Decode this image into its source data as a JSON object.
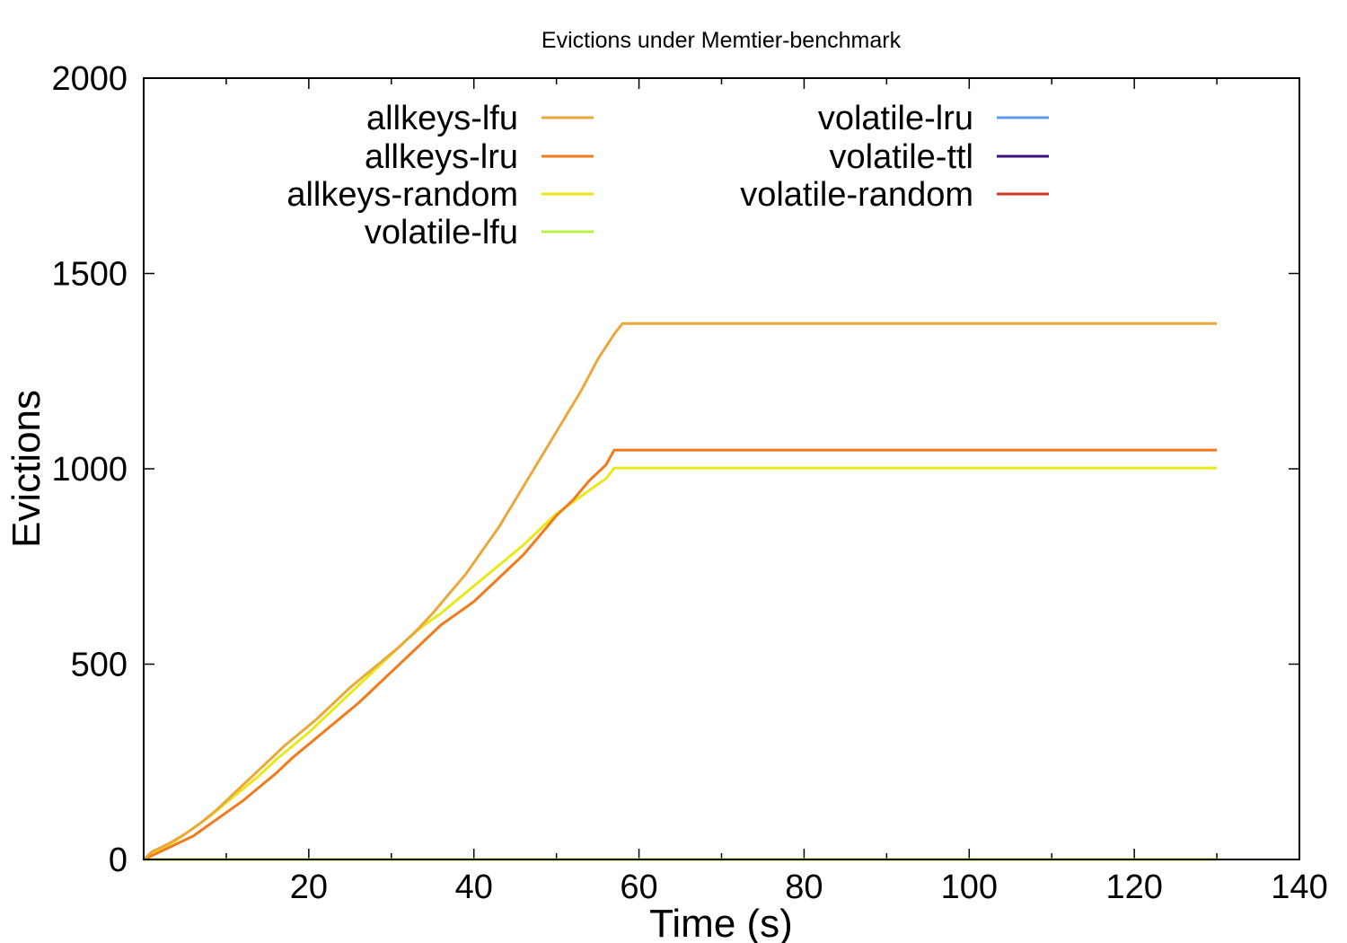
{
  "chart_data": {
    "type": "line",
    "title": "Evictions under Memtier-benchmark",
    "xlabel": "Time (s)",
    "ylabel": "Evictions",
    "xlim": [
      0,
      140
    ],
    "ylim": [
      0,
      2000
    ],
    "xticks": [
      20,
      40,
      60,
      80,
      100,
      120,
      140
    ],
    "xtick_labels": [
      "20",
      "40",
      "60",
      "80",
      "100",
      "120",
      "140"
    ],
    "yticks": [
      0,
      500,
      1000,
      1500,
      2000
    ],
    "ytick_labels": [
      "0",
      "500",
      "1000",
      "1500",
      "2000"
    ],
    "grid": false,
    "legend_position": "top",
    "series": [
      {
        "name": "allkeys-lfu",
        "color": "#eaa83a",
        "points": [
          [
            0,
            0
          ],
          [
            1,
            20
          ],
          [
            3,
            40
          ],
          [
            5,
            65
          ],
          [
            7,
            95
          ],
          [
            9,
            130
          ],
          [
            11,
            170
          ],
          [
            13,
            210
          ],
          [
            15,
            250
          ],
          [
            17,
            290
          ],
          [
            19,
            325
          ],
          [
            21,
            360
          ],
          [
            23,
            400
          ],
          [
            25,
            440
          ],
          [
            27,
            475
          ],
          [
            29,
            510
          ],
          [
            31,
            545
          ],
          [
            33,
            585
          ],
          [
            35,
            630
          ],
          [
            37,
            680
          ],
          [
            39,
            730
          ],
          [
            41,
            790
          ],
          [
            43,
            850
          ],
          [
            45,
            920
          ],
          [
            47,
            990
          ],
          [
            49,
            1060
          ],
          [
            51,
            1130
          ],
          [
            53,
            1200
          ],
          [
            55,
            1280
          ],
          [
            57,
            1345
          ],
          [
            58,
            1372
          ],
          [
            130,
            1372
          ]
        ]
      },
      {
        "name": "allkeys-lru",
        "color": "#f07a1c",
        "points": [
          [
            0,
            0
          ],
          [
            2,
            20
          ],
          [
            4,
            40
          ],
          [
            6,
            60
          ],
          [
            8,
            90
          ],
          [
            10,
            120
          ],
          [
            12,
            150
          ],
          [
            14,
            185
          ],
          [
            16,
            220
          ],
          [
            18,
            260
          ],
          [
            20,
            295
          ],
          [
            22,
            330
          ],
          [
            24,
            365
          ],
          [
            26,
            400
          ],
          [
            28,
            440
          ],
          [
            30,
            480
          ],
          [
            32,
            520
          ],
          [
            34,
            560
          ],
          [
            36,
            600
          ],
          [
            38,
            630
          ],
          [
            40,
            660
          ],
          [
            42,
            700
          ],
          [
            44,
            740
          ],
          [
            46,
            780
          ],
          [
            48,
            830
          ],
          [
            50,
            880
          ],
          [
            52,
            920
          ],
          [
            54,
            970
          ],
          [
            56,
            1010
          ],
          [
            57,
            1048
          ],
          [
            130,
            1048
          ]
        ]
      },
      {
        "name": "allkeys-random",
        "color": "#e8e81a",
        "points": [
          [
            0,
            0
          ],
          [
            2,
            25
          ],
          [
            4,
            50
          ],
          [
            6,
            80
          ],
          [
            8,
            110
          ],
          [
            10,
            145
          ],
          [
            12,
            180
          ],
          [
            14,
            215
          ],
          [
            16,
            255
          ],
          [
            18,
            290
          ],
          [
            20,
            325
          ],
          [
            22,
            365
          ],
          [
            24,
            405
          ],
          [
            26,
            445
          ],
          [
            28,
            485
          ],
          [
            30,
            525
          ],
          [
            32,
            565
          ],
          [
            34,
            600
          ],
          [
            36,
            630
          ],
          [
            38,
            665
          ],
          [
            40,
            700
          ],
          [
            42,
            735
          ],
          [
            44,
            770
          ],
          [
            46,
            805
          ],
          [
            48,
            845
          ],
          [
            50,
            885
          ],
          [
            52,
            915
          ],
          [
            54,
            945
          ],
          [
            56,
            975
          ],
          [
            57,
            1002
          ],
          [
            130,
            1002
          ]
        ]
      },
      {
        "name": "volatile-lfu",
        "color": "#b8f048",
        "points": [
          [
            0,
            0
          ],
          [
            130,
            0
          ]
        ]
      },
      {
        "name": "volatile-lru",
        "color": "#5d9bec",
        "points": [
          [
            0,
            0
          ],
          [
            130,
            0
          ]
        ]
      },
      {
        "name": "volatile-ttl",
        "color": "#3b0f7a",
        "points": [
          [
            0,
            0
          ],
          [
            130,
            0
          ]
        ]
      },
      {
        "name": "volatile-random",
        "color": "#c83a22",
        "points": [
          [
            0,
            0
          ],
          [
            130,
            0
          ]
        ]
      }
    ]
  }
}
